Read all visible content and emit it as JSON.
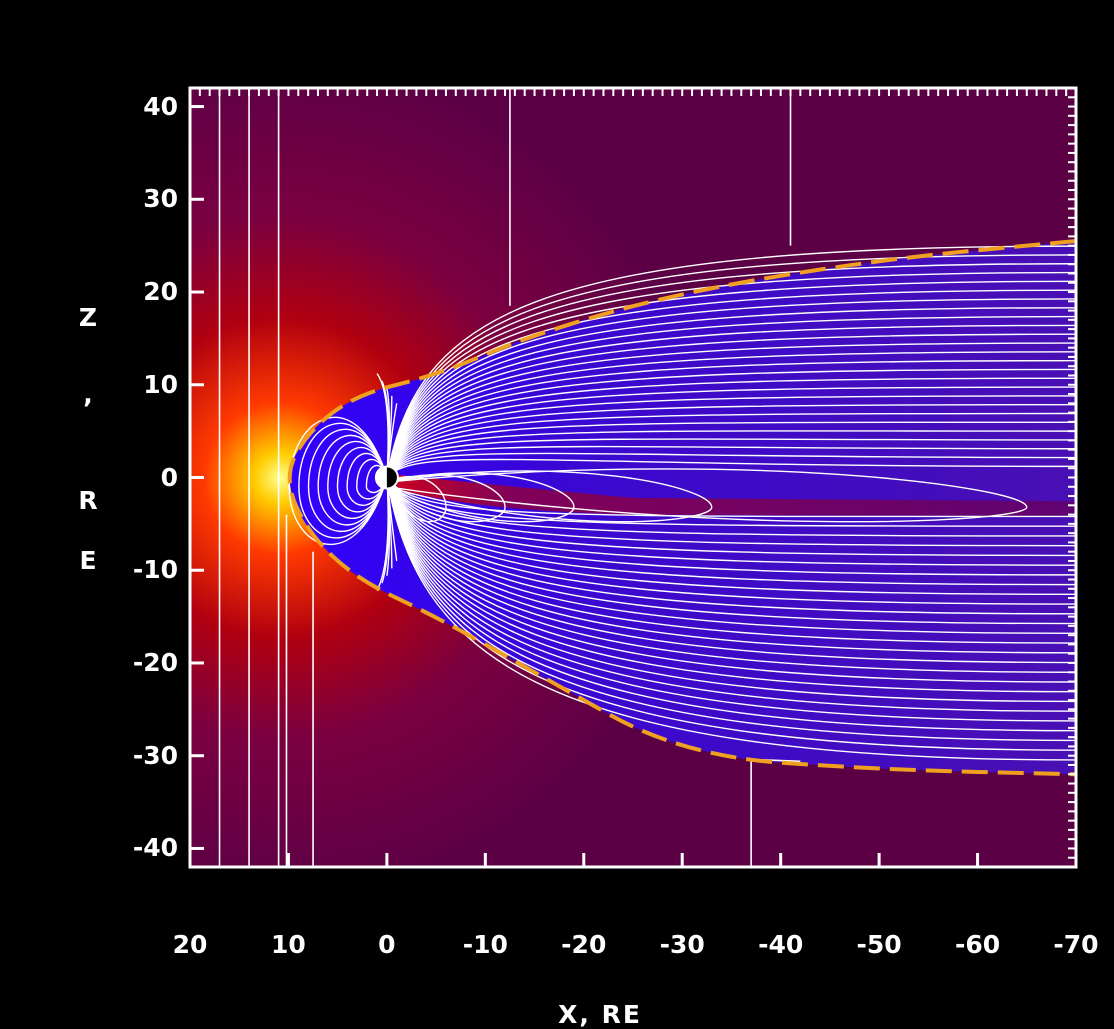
{
  "chart_data": {
    "type": "heatmap",
    "title": "",
    "xlabel": "X, RE",
    "ylabel": "Z, RE",
    "xlim": [
      20,
      -70
    ],
    "ylim": [
      -42,
      42
    ],
    "x_ticks": [
      20,
      10,
      0,
      -10,
      -20,
      -30,
      -40,
      -50,
      -60,
      -70
    ],
    "y_ticks": [
      40,
      30,
      20,
      10,
      0,
      -10,
      -20,
      -30,
      -40
    ],
    "field_line_color": "#ffffff",
    "magnetopause_color": "#f0a020",
    "colormap": [
      "#2a00ff",
      "#60008a",
      "#7a0030",
      "#c00000",
      "#ff3000",
      "#ffd000",
      "#ffff80"
    ],
    "series": [
      {
        "name": "",
        "kind": "magnetopause_boundary",
        "x": [
          -70,
          -50,
          -30,
          -15,
          -5,
          3,
          8,
          10.5,
          8,
          3,
          -5,
          -15,
          -30,
          -50,
          -70
        ],
        "y": [
          25.5,
          23.5,
          20,
          15.5,
          11,
          9,
          5,
          0,
          -6,
          -11,
          -15,
          -21,
          -30,
          -31.5,
          -32
        ]
      }
    ]
  },
  "axis_letters": {
    "y": [
      "Z",
      ",",
      "R",
      "E"
    ],
    "x": "X, RE"
  }
}
